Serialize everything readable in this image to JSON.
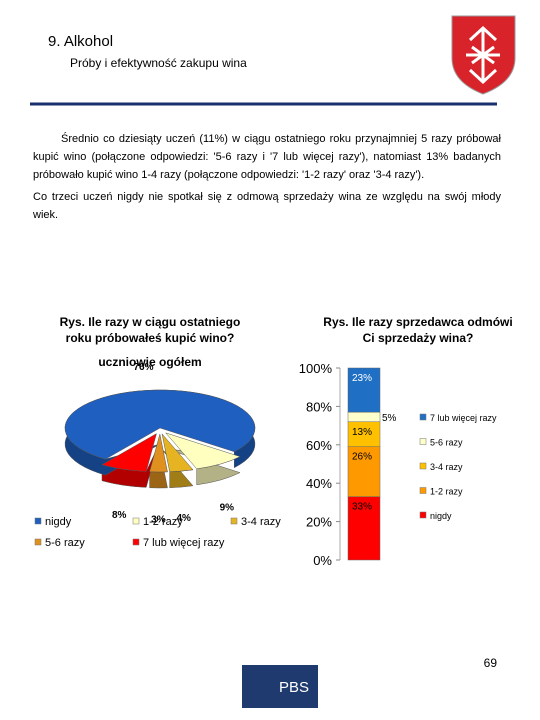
{
  "header": {
    "title": "9. Alkohol",
    "subtitle": "Próby i efektywność zakupu wina"
  },
  "paragraphs": [
    "Średnio co dziesiąty uczeń (11%) w ciągu ostatniego roku przynajmniej 5 razy próbował kupić wino (połączone odpowiedzi: '5-6 razy i '7 lub więcej razy'), natomiast 13% badanych próbowało kupić wino 1-4 razy (połączone odpowiedzi: '1-2 razy' oraz '3-4 razy').",
    "Co trzeci uczeń nigdy nie spotkał się z odmową sprzedaży wina ze względu na swój młody wiek."
  ],
  "chart_data": [
    {
      "type": "pie",
      "title": "Rys. Ile razy w ciągu ostatniego roku próbowałeś kupić wino?",
      "subtitle": "uczniowie ogółem",
      "categories": [
        "nigdy",
        "1-2 razy",
        "3-4 razy",
        "5-6 razy",
        "7 lub więcej razy"
      ],
      "values": [
        76,
        9,
        4,
        3,
        8
      ],
      "value_labels": [
        "76%",
        "9%",
        "4%",
        "3%",
        "8%"
      ],
      "colors": [
        "#1f5fbf",
        "#ffffc0",
        "#e6b422",
        "#e0901e",
        "#ff0000"
      ]
    },
    {
      "type": "bar",
      "stacked": true,
      "title": "Rys. Ile razy sprzedawca odmówi Ci sprzedaży wina?",
      "categories": [
        null
      ],
      "series": [
        {
          "name": "nigdy",
          "color": "#ff0000",
          "values": [
            33
          ],
          "value_labels": [
            "33%"
          ]
        },
        {
          "name": "1-2 razy",
          "color": "#ff9900",
          "values": [
            26
          ],
          "value_labels": [
            "26%"
          ]
        },
        {
          "name": "3-4 razy",
          "color": "#ffc000",
          "values": [
            13
          ],
          "value_labels": [
            "13%"
          ]
        },
        {
          "name": "5-6 razy",
          "color": "#ffffcc",
          "values": [
            5
          ],
          "value_labels": [
            "5%"
          ]
        },
        {
          "name": "7 lub więcej razy",
          "color": "#1f6fc5",
          "values": [
            23
          ],
          "value_labels": [
            "23%"
          ]
        }
      ],
      "ylim": [
        0,
        100
      ],
      "yticks": [
        {
          "value": 0,
          "label": "0%"
        },
        {
          "value": 20,
          "label": "20%"
        },
        {
          "value": 40,
          "label": "40%"
        },
        {
          "value": 60,
          "label": "60%"
        },
        {
          "value": 80,
          "label": "80%"
        },
        {
          "value": 100,
          "label": "100%"
        }
      ],
      "legend": "right"
    }
  ],
  "page_number": 69,
  "logo": "PBS"
}
